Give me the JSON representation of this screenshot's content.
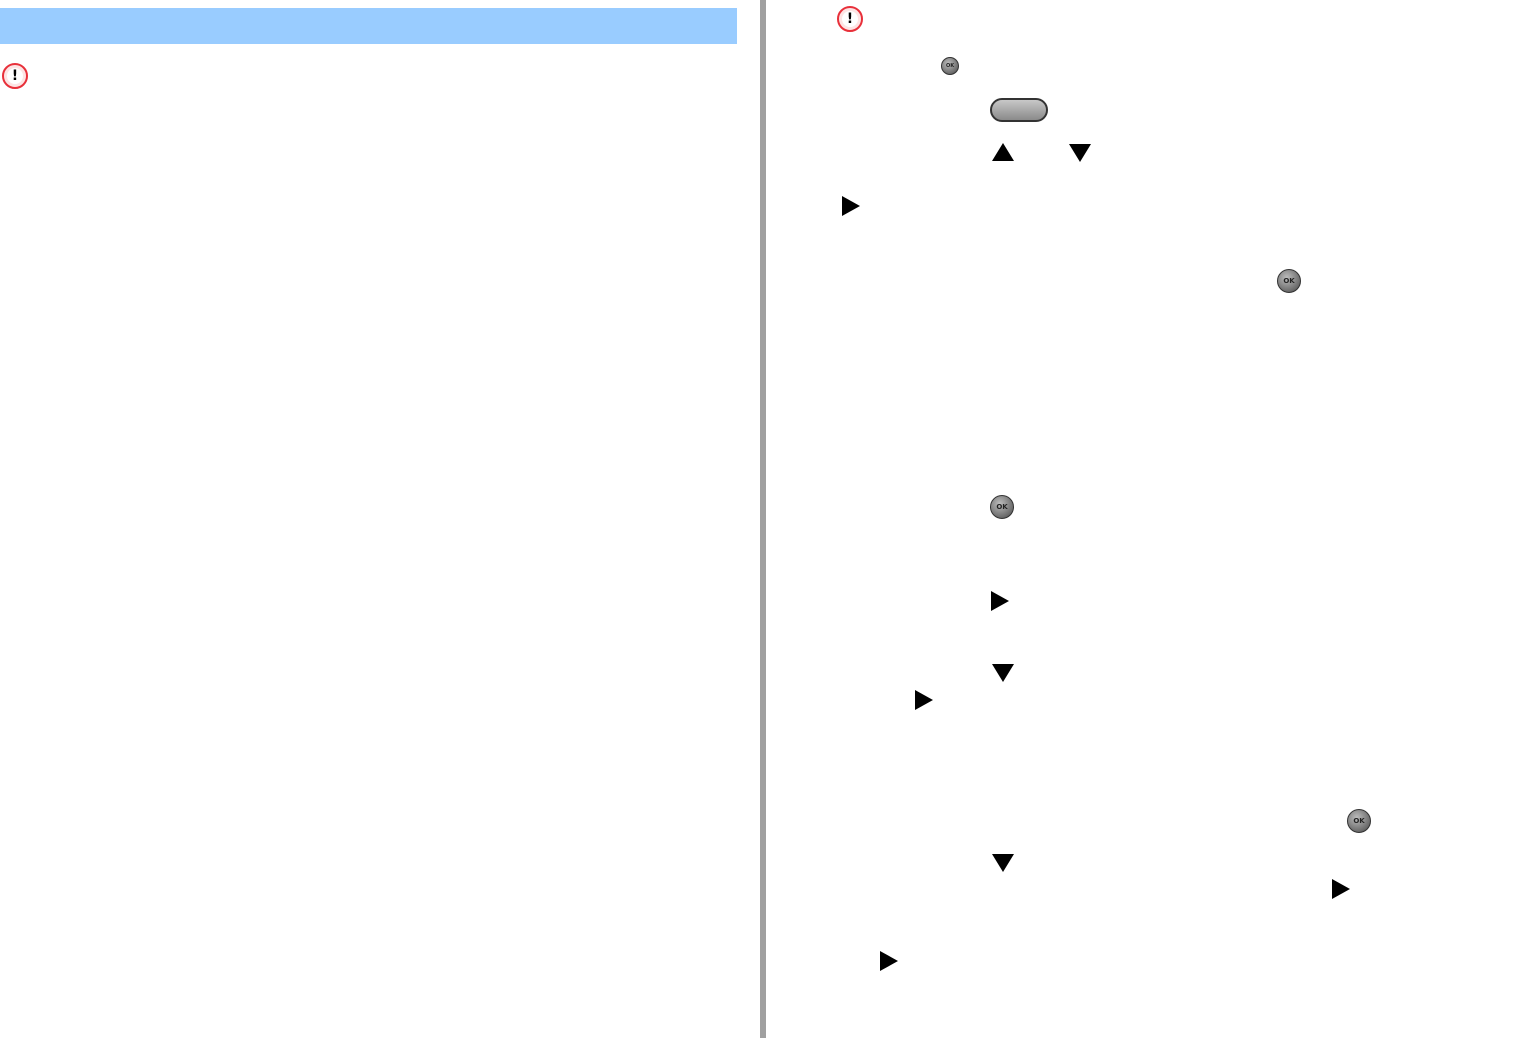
{
  "colors": {
    "header_bar": "#99ccff",
    "divider": "#a0a0a0",
    "warning": "#e8303a"
  },
  "icons": {
    "warning": "warning-exclamation-icon",
    "ok": "ok-button-icon",
    "back": "back-button-icon",
    "up": "up-arrow-icon",
    "down": "down-arrow-icon",
    "right": "right-arrow-icon"
  },
  "ok_label": "OK",
  "warning_mark": "!"
}
